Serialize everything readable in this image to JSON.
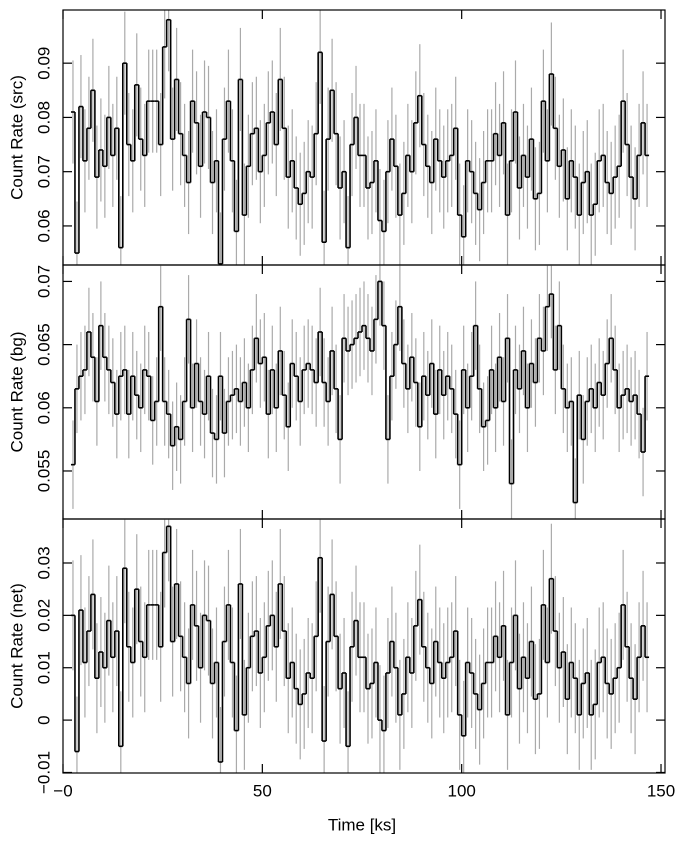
{
  "chart_data": {
    "type": "step",
    "xlabel": "Time [ks]",
    "xlim": [
      0,
      151
    ],
    "xticks": [
      {
        "value": 0,
        "label": "−0"
      },
      50,
      100,
      150
    ],
    "step_color": "#000000",
    "error_color": "#aaaaaa",
    "bins": [
      2,
      3,
      4,
      5,
      6,
      7,
      8,
      9,
      10,
      11,
      12,
      13,
      14,
      15,
      16,
      17,
      18,
      19,
      20,
      21,
      22,
      23,
      24,
      25,
      26,
      27,
      28,
      29,
      30,
      31,
      32,
      33,
      34,
      35,
      36,
      37,
      38,
      39,
      40,
      41,
      42,
      43,
      44,
      45,
      46,
      47,
      48,
      49,
      50,
      51,
      52,
      53,
      54,
      55,
      56,
      57,
      58,
      59,
      60,
      61,
      62,
      63,
      64,
      65,
      66,
      67,
      68,
      69,
      70,
      71,
      72,
      73,
      74,
      75,
      76,
      77,
      78,
      79,
      80,
      81,
      82,
      83,
      84,
      85,
      86,
      87,
      88,
      89,
      90,
      91,
      92,
      93,
      94,
      95,
      96,
      97,
      98,
      99,
      100,
      101,
      102,
      103,
      104,
      105,
      106,
      107,
      108,
      109,
      110,
      111,
      112,
      113,
      114,
      115,
      116,
      117,
      118,
      119,
      120,
      121,
      122,
      123,
      124,
      125,
      126,
      127,
      128,
      129,
      130,
      131,
      132,
      133,
      134,
      135,
      136,
      137,
      138,
      139,
      140,
      141,
      142,
      143,
      144,
      145,
      146,
      147
    ],
    "panels": [
      {
        "ylabel": "Count Rate (src)",
        "ylim": [
          0.0528,
          0.0998
        ],
        "yticks": [
          0.06,
          0.07,
          0.08,
          0.09
        ],
        "yerr": 0.0095,
        "values": [
          0.081,
          0.055,
          0.082,
          0.072,
          0.078,
          0.085,
          0.069,
          0.074,
          0.071,
          0.08,
          0.073,
          0.078,
          0.056,
          0.09,
          0.075,
          0.072,
          0.086,
          0.076,
          0.073,
          0.083,
          0.083,
          0.083,
          0.075,
          0.093,
          0.098,
          0.076,
          0.087,
          0.077,
          0.073,
          0.068,
          0.083,
          0.079,
          0.071,
          0.081,
          0.08,
          0.068,
          0.072,
          0.053,
          0.076,
          0.083,
          0.072,
          0.059,
          0.087,
          0.062,
          0.071,
          0.077,
          0.078,
          0.07,
          0.073,
          0.079,
          0.081,
          0.075,
          0.087,
          0.078,
          0.069,
          0.072,
          0.067,
          0.064,
          0.066,
          0.07,
          0.069,
          0.077,
          0.092,
          0.057,
          0.076,
          0.085,
          0.077,
          0.067,
          0.07,
          0.056,
          0.075,
          0.08,
          0.073,
          0.073,
          0.067,
          0.068,
          0.072,
          0.061,
          0.059,
          0.07,
          0.076,
          0.071,
          0.062,
          0.066,
          0.073,
          0.07,
          0.079,
          0.084,
          0.075,
          0.071,
          0.068,
          0.076,
          0.072,
          0.069,
          0.072,
          0.073,
          0.078,
          0.062,
          0.058,
          0.072,
          0.07,
          0.066,
          0.063,
          0.068,
          0.072,
          0.072,
          0.077,
          0.073,
          0.079,
          0.062,
          0.072,
          0.081,
          0.067,
          0.073,
          0.069,
          0.076,
          0.065,
          0.066,
          0.083,
          0.072,
          0.088,
          0.078,
          0.071,
          0.074,
          0.065,
          0.072,
          0.069,
          0.062,
          0.068,
          0.07,
          0.062,
          0.064,
          0.072,
          0.073,
          0.068,
          0.066,
          0.069,
          0.071,
          0.083,
          0.075,
          0.069,
          0.065,
          0.073,
          0.079,
          0.073
        ]
      },
      {
        "ylabel": "Count Rate (bg)",
        "ylim": [
          0.0512,
          0.0713
        ],
        "yticks": [
          0.055,
          0.06,
          0.065,
          0.07
        ],
        "yerr": 0.0035,
        "values": [
          0.0555,
          0.0615,
          0.0625,
          0.063,
          0.066,
          0.064,
          0.0605,
          0.0665,
          0.064,
          0.063,
          0.062,
          0.0595,
          0.0625,
          0.063,
          0.0595,
          0.0625,
          0.061,
          0.06,
          0.063,
          0.0625,
          0.059,
          0.0605,
          0.068,
          0.0605,
          0.0595,
          0.057,
          0.0585,
          0.0575,
          0.0605,
          0.067,
          0.06,
          0.0635,
          0.0605,
          0.0595,
          0.0625,
          0.058,
          0.0575,
          0.0625,
          0.058,
          0.0605,
          0.061,
          0.0615,
          0.0605,
          0.062,
          0.06,
          0.063,
          0.0655,
          0.0635,
          0.064,
          0.0595,
          0.063,
          0.06,
          0.0645,
          0.061,
          0.0585,
          0.0635,
          0.0625,
          0.0605,
          0.063,
          0.0635,
          0.063,
          0.062,
          0.066,
          0.062,
          0.0605,
          0.0645,
          0.0615,
          0.0575,
          0.0655,
          0.0645,
          0.065,
          0.0655,
          0.066,
          0.0665,
          0.0655,
          0.0645,
          0.067,
          0.07,
          0.0665,
          0.0575,
          0.0625,
          0.065,
          0.068,
          0.0635,
          0.0615,
          0.064,
          0.062,
          0.0585,
          0.0625,
          0.061,
          0.0635,
          0.0595,
          0.063,
          0.061,
          0.0625,
          0.0615,
          0.0595,
          0.0555,
          0.063,
          0.06,
          0.0625,
          0.0665,
          0.0615,
          0.0585,
          0.059,
          0.063,
          0.06,
          0.064,
          0.0605,
          0.0655,
          0.054,
          0.063,
          0.0615,
          0.0645,
          0.06,
          0.0635,
          0.062,
          0.0655,
          0.0645,
          0.068,
          0.069,
          0.063,
          0.0665,
          0.0615,
          0.06,
          0.0605,
          0.0525,
          0.061,
          0.0575,
          0.0605,
          0.0615,
          0.06,
          0.062,
          0.061,
          0.0635,
          0.0655,
          0.063,
          0.06,
          0.061,
          0.0615,
          0.0605,
          0.061,
          0.0595,
          0.0565,
          0.0625
        ]
      },
      {
        "ylabel": "Count Rate (net)",
        "ylim": [
          -0.0101,
          0.0384
        ],
        "yticks": [
          {
            "value": -0.01,
            "label": "−0.01"
          },
          0,
          0.01,
          0.02,
          0.03
        ],
        "yerr": 0.0105,
        "values": [
          0.02,
          -0.006,
          0.021,
          0.011,
          0.017,
          0.024,
          0.008,
          0.013,
          0.01,
          0.019,
          0.012,
          0.017,
          -0.005,
          0.029,
          0.014,
          0.011,
          0.025,
          0.015,
          0.012,
          0.022,
          0.022,
          0.022,
          0.014,
          0.032,
          0.037,
          0.015,
          0.026,
          0.016,
          0.012,
          0.007,
          0.022,
          0.018,
          0.01,
          0.02,
          0.019,
          0.007,
          0.011,
          -0.008,
          0.015,
          0.022,
          0.011,
          -0.002,
          0.026,
          0.001,
          0.01,
          0.016,
          0.017,
          0.009,
          0.012,
          0.018,
          0.02,
          0.014,
          0.026,
          0.017,
          0.008,
          0.011,
          0.006,
          0.003,
          0.005,
          0.009,
          0.008,
          0.016,
          0.031,
          -0.004,
          0.015,
          0.024,
          0.016,
          0.006,
          0.009,
          -0.005,
          0.014,
          0.019,
          0.012,
          0.012,
          0.006,
          0.007,
          0.011,
          0,
          -0.002,
          0.009,
          0.015,
          0.01,
          0.001,
          0.005,
          0.012,
          0.009,
          0.018,
          0.023,
          0.014,
          0.01,
          0.007,
          0.015,
          0.011,
          0.008,
          0.011,
          0.012,
          0.017,
          0.001,
          -0.003,
          0.011,
          0.009,
          0.005,
          0.002,
          0.007,
          0.011,
          0.011,
          0.016,
          0.012,
          0.018,
          0.001,
          0.011,
          0.02,
          0.006,
          0.012,
          0.008,
          0.015,
          0.004,
          0.005,
          0.022,
          0.011,
          0.027,
          0.017,
          0.01,
          0.013,
          0.004,
          0.011,
          0.008,
          0.001,
          0.007,
          0.009,
          0.001,
          0.003,
          0.011,
          0.012,
          0.007,
          0.005,
          0.008,
          0.01,
          0.022,
          0.014,
          0.008,
          0.004,
          0.012,
          0.018,
          0.012
        ]
      }
    ]
  }
}
